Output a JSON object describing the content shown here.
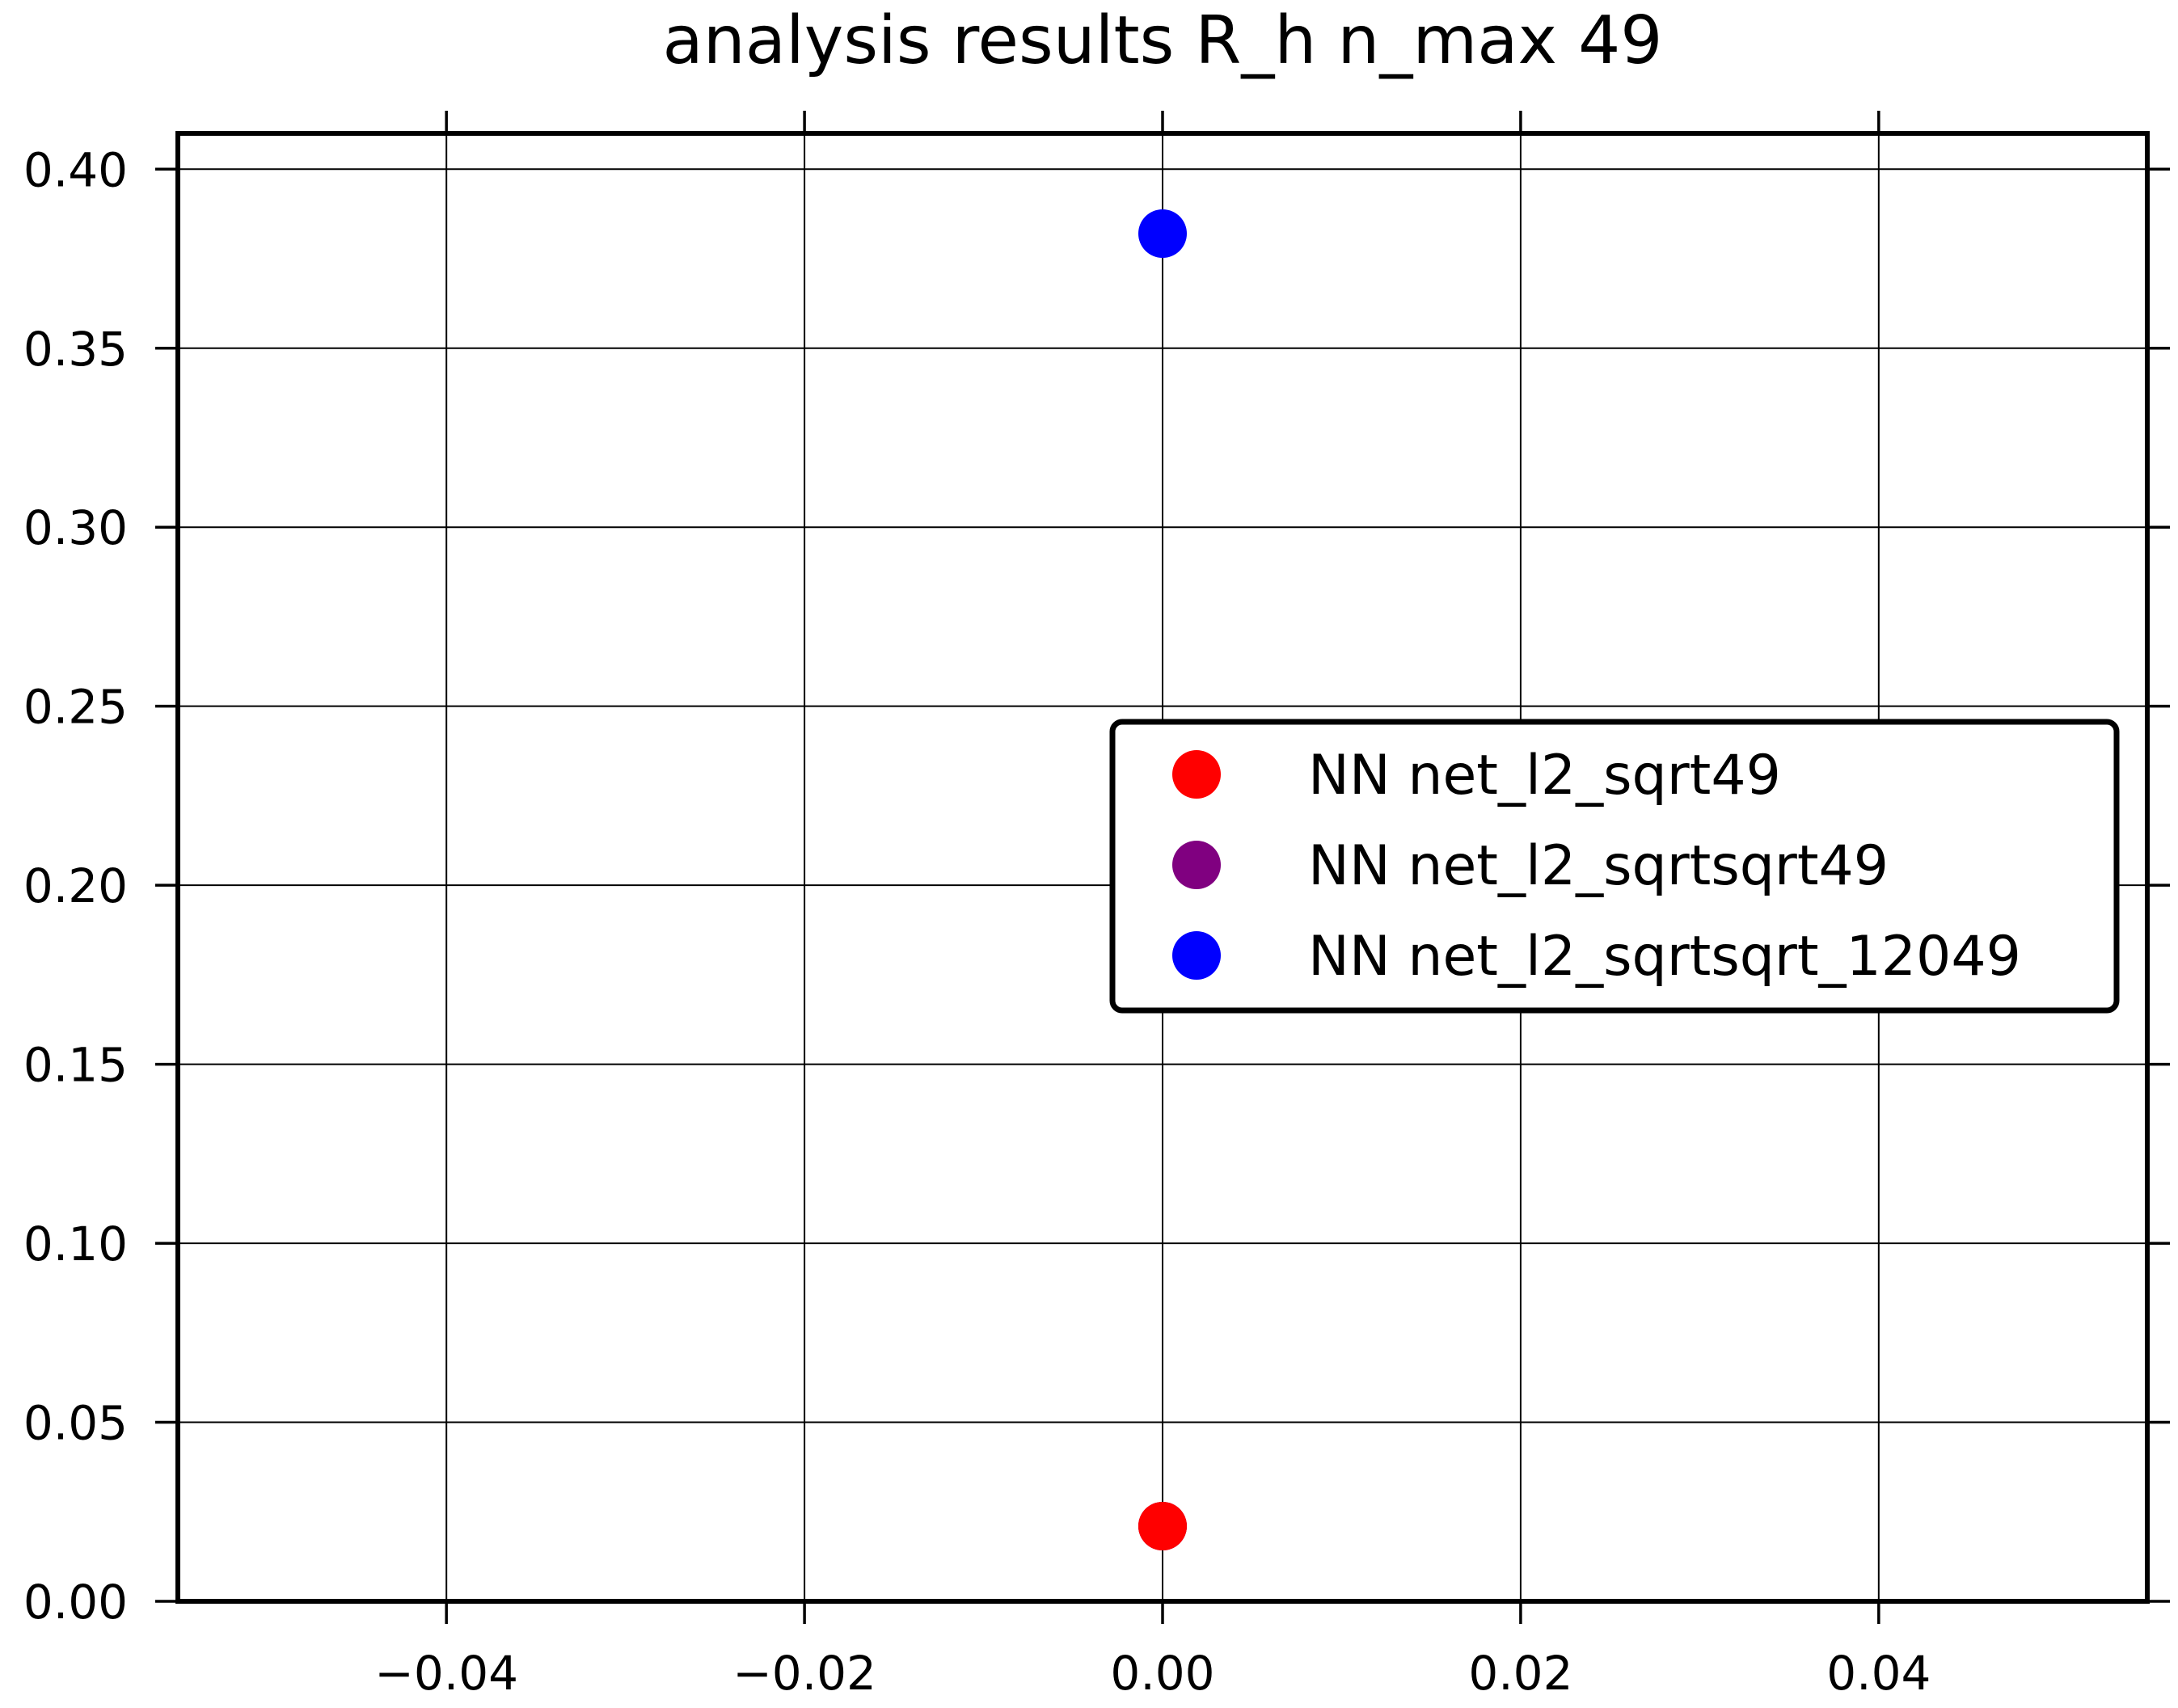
{
  "chart_data": {
    "type": "scatter",
    "title": "analysis results R_h  n_max 49",
    "xlabel": "",
    "ylabel": "",
    "xlim": [
      -0.055,
      0.055
    ],
    "ylim": [
      0.0,
      0.41
    ],
    "xticks": [
      -0.04,
      -0.02,
      0.0,
      0.02,
      0.04
    ],
    "xtick_labels": [
      "−0.04",
      "−0.02",
      "0.00",
      "0.02",
      "0.04"
    ],
    "yticks": [
      0.0,
      0.05,
      0.1,
      0.15,
      0.2,
      0.25,
      0.3,
      0.35,
      0.4
    ],
    "ytick_labels": [
      "0.00",
      "0.05",
      "0.10",
      "0.15",
      "0.20",
      "0.25",
      "0.30",
      "0.35",
      "0.40"
    ],
    "grid": true,
    "legend_position": "center-right",
    "series": [
      {
        "name": "NN net_l2_sqrt49",
        "color": "#ff0000",
        "x": [
          0.0
        ],
        "y": [
          0.021
        ]
      },
      {
        "name": "NN net_l2_sqrtsqrt49",
        "color": "#800080",
        "x": [
          0.0
        ],
        "y": [
          0.021
        ]
      },
      {
        "name": "NN net_l2_sqrtsqrt_12049",
        "color": "#0000ff",
        "x": [
          0.0
        ],
        "y": [
          0.382
        ]
      }
    ]
  }
}
